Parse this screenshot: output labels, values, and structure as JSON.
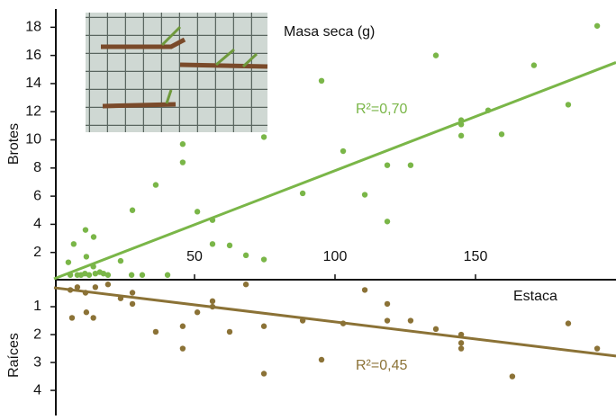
{
  "chart_data": [
    {
      "type": "scatter",
      "title": "Masa seca (g)",
      "xlabel": "Estaca",
      "ylabel": "Brotes",
      "xlim": [
        0,
        200
      ],
      "xticks": [
        50,
        100,
        150
      ],
      "ylim": [
        0,
        19.3
      ],
      "yticks": [
        2,
        4,
        6,
        8,
        10,
        12,
        14,
        16,
        18
      ],
      "annotation": "R²=0,70",
      "series": [
        {
          "color": "#7ab648",
          "x": [
            5.1,
            7,
            11.2,
            14.1,
            11.5,
            14,
            5.8,
            8.3,
            9.6,
            11,
            12.5,
            14.7,
            16.3,
            17.6,
            19.2,
            23.7,
            27.9,
            27.6,
            31.4,
            36.2,
            40.4,
            45.8,
            45.8,
            51,
            56.4,
            56.4,
            62.5,
            68.3,
            74.7,
            74.7,
            88.5,
            95.2,
            102.9,
            110.6,
            118.6,
            118.6,
            126.9,
            135.9,
            144.9,
            144.9,
            144.9,
            154.5,
            159.3,
            170.8,
            183,
            193.3
          ],
          "values": [
            1.3,
            2.6,
            3.6,
            3.1,
            1.7,
            1,
            0.4,
            0.4,
            0.4,
            0.5,
            0.4,
            0.5,
            0.6,
            0.5,
            0.4,
            1.4,
            5,
            0.4,
            0.4,
            6.8,
            0.4,
            9.7,
            8.4,
            4.9,
            4.3,
            2.6,
            2.5,
            1.8,
            10.2,
            1.5,
            6.2,
            14.2,
            9.2,
            6.1,
            8.2,
            4.2,
            8.2,
            16,
            11.4,
            11.1,
            10.3,
            12.1,
            10.4,
            15.3,
            12.5,
            18.1
          ]
        },
        {
          "color": "#7ab648",
          "x": [
            0,
            200
          ],
          "values": [
            0.13,
            15.5
          ],
          "style": "line"
        }
      ]
    },
    {
      "type": "scatter",
      "ylabel": "Raíces",
      "xlim": [
        0,
        200
      ],
      "ylim": [
        0,
        4.9
      ],
      "inverted": true,
      "yticks": [
        1,
        2,
        3,
        4
      ],
      "annotation": "R²=0,45",
      "series": [
        {
          "color": "#8b7236",
          "x": [
            5.8,
            6.4,
            11.2,
            11.5,
            14,
            14.7,
            8.3,
            19.2,
            23.7,
            27.9,
            27.9,
            36.2,
            45.8,
            45.8,
            51,
            56.4,
            56.4,
            62.5,
            68.3,
            74.7,
            74.7,
            88.5,
            95.2,
            102.9,
            110.6,
            118.6,
            118.6,
            126.9,
            135.9,
            144.9,
            144.9,
            144.9,
            163.1,
            183,
            193.3
          ],
          "values": [
            0.4,
            1.4,
            0.5,
            1.2,
            1.4,
            0.3,
            0.3,
            0.2,
            0.7,
            0.5,
            0.9,
            1.9,
            1.7,
            2.5,
            1.2,
            0.8,
            1,
            1.9,
            0.2,
            1.7,
            3.4,
            1.5,
            2.9,
            1.6,
            0.4,
            0.9,
            1.5,
            1.5,
            1.8,
            2,
            2.3,
            2.5,
            3.5,
            1.6,
            2.5
          ]
        },
        {
          "color": "#8b7236",
          "x": [
            0,
            200
          ],
          "values": [
            0.32,
            2.77
          ],
          "style": "line"
        }
      ]
    }
  ]
}
